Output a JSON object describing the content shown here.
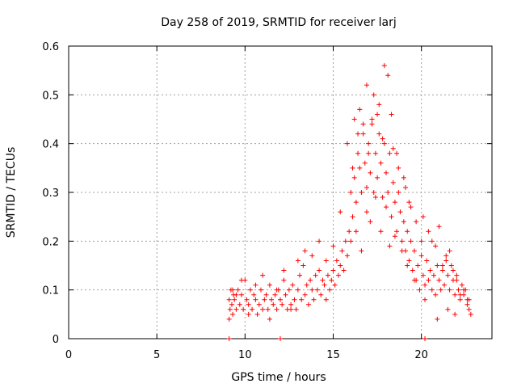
{
  "chart_data": {
    "type": "scatter",
    "title": "Day 258 of 2019, SRMTID for receiver larj",
    "xlabel": "GPS time / hours",
    "ylabel": "SRMTID / TECUs",
    "xlim": [
      0,
      24
    ],
    "ylim": [
      0,
      0.6
    ],
    "xticks": [
      0,
      5,
      10,
      15,
      20
    ],
    "yticks": [
      0,
      0.1,
      0.2,
      0.3,
      0.4,
      0.5,
      0.6
    ],
    "xtick_labels": [
      "0",
      "5",
      "10",
      "15",
      "20"
    ],
    "ytick_labels": [
      "0",
      "0.1",
      "0.2",
      "0.3",
      "0.4",
      "0.5",
      "0.6"
    ],
    "grid": true,
    "marker": "+",
    "series": [
      {
        "name": "SRMTID",
        "color": "#ff0000",
        "x": [
          9.1,
          9.15,
          9.2,
          9.25,
          9.3,
          9.35,
          9.4,
          9.5,
          9.6,
          9.7,
          9.8,
          9.9,
          10.0,
          10.1,
          10.2,
          10.3,
          10.4,
          10.5,
          10.6,
          10.7,
          10.8,
          10.9,
          11.0,
          11.1,
          11.2,
          11.3,
          11.4,
          11.5,
          11.6,
          11.7,
          11.8,
          11.9,
          12.0,
          12.1,
          12.2,
          12.3,
          12.4,
          12.5,
          12.6,
          12.7,
          12.8,
          12.9,
          13.0,
          13.1,
          13.2,
          13.3,
          13.4,
          13.5,
          13.6,
          13.7,
          13.8,
          13.9,
          14.0,
          14.1,
          14.2,
          14.3,
          14.4,
          14.5,
          14.6,
          14.7,
          14.8,
          14.9,
          15.0,
          15.1,
          15.2,
          15.3,
          15.4,
          15.5,
          15.6,
          15.7,
          15.8,
          15.9,
          16.0,
          16.1,
          16.2,
          16.3,
          16.4,
          16.5,
          16.6,
          16.7,
          16.8,
          16.9,
          17.0,
          17.1,
          17.2,
          17.3,
          17.4,
          17.5,
          17.6,
          17.7,
          17.8,
          17.9,
          18.0,
          18.1,
          18.2,
          18.3,
          18.4,
          18.5,
          18.6,
          18.7,
          18.8,
          18.9,
          19.0,
          19.1,
          19.2,
          19.3,
          19.4,
          19.5,
          19.6,
          19.7,
          19.8,
          19.9,
          20.0,
          20.1,
          20.2,
          20.3,
          20.4,
          20.5,
          20.6,
          20.7,
          20.8,
          20.9,
          21.0,
          21.1,
          21.2,
          21.3,
          21.4,
          21.5,
          21.6,
          21.7,
          21.8,
          21.9,
          22.0,
          22.1,
          22.2,
          22.3,
          22.4,
          22.5,
          22.6,
          22.7,
          22.8,
          9.1,
          9.3,
          9.5,
          9.8,
          10.2,
          10.6,
          11.0,
          11.4,
          11.8,
          12.2,
          12.6,
          13.0,
          13.4,
          13.8,
          14.2,
          14.6,
          15.0,
          15.4,
          15.8,
          16.2,
          16.5,
          16.9,
          17.2,
          17.6,
          17.9,
          18.3,
          18.6,
          19.0,
          19.3,
          19.7,
          20.0,
          20.4,
          20.8,
          21.2,
          21.6,
          22.0,
          22.4,
          22.7,
          16.1,
          16.4,
          16.7,
          17.0,
          17.3,
          17.5,
          17.8,
          18.1,
          18.4,
          18.7,
          19.1,
          19.4,
          20.1,
          20.6,
          21.0,
          21.4,
          21.8,
          22.2,
          22.6,
          16.0,
          16.3,
          16.6,
          16.9,
          17.1,
          17.4,
          17.7,
          18.0,
          18.2,
          18.5,
          18.9,
          19.2,
          19.6,
          20.2,
          20.9,
          21.5,
          21.9,
          9.1,
          12.0,
          20.2
        ],
        "y": [
          0.08,
          0.06,
          0.1,
          0.07,
          0.05,
          0.09,
          0.08,
          0.06,
          0.1,
          0.07,
          0.09,
          0.06,
          0.12,
          0.08,
          0.07,
          0.1,
          0.06,
          0.09,
          0.08,
          0.05,
          0.07,
          0.1,
          0.06,
          0.08,
          0.09,
          0.06,
          0.11,
          0.08,
          0.07,
          0.09,
          0.06,
          0.1,
          0.08,
          0.07,
          0.12,
          0.09,
          0.06,
          0.1,
          0.07,
          0.11,
          0.08,
          0.06,
          0.1,
          0.13,
          0.08,
          0.15,
          0.09,
          0.11,
          0.07,
          0.12,
          0.1,
          0.08,
          0.13,
          0.1,
          0.14,
          0.09,
          0.12,
          0.11,
          0.08,
          0.13,
          0.1,
          0.12,
          0.14,
          0.11,
          0.16,
          0.13,
          0.15,
          0.18,
          0.14,
          0.2,
          0.17,
          0.22,
          0.3,
          0.25,
          0.33,
          0.28,
          0.38,
          0.35,
          0.3,
          0.42,
          0.36,
          0.31,
          0.4,
          0.34,
          0.45,
          0.3,
          0.38,
          0.33,
          0.42,
          0.36,
          0.29,
          0.4,
          0.34,
          0.3,
          0.38,
          0.25,
          0.32,
          0.28,
          0.22,
          0.3,
          0.26,
          0.2,
          0.24,
          0.18,
          0.22,
          0.16,
          0.2,
          0.14,
          0.18,
          0.12,
          0.15,
          0.1,
          0.17,
          0.13,
          0.11,
          0.16,
          0.12,
          0.14,
          0.1,
          0.13,
          0.09,
          0.15,
          0.12,
          0.1,
          0.14,
          0.11,
          0.17,
          0.13,
          0.1,
          0.15,
          0.12,
          0.09,
          0.13,
          0.1,
          0.08,
          0.11,
          0.09,
          0.1,
          0.07,
          0.08,
          0.05,
          0.04,
          0.1,
          0.09,
          0.12,
          0.05,
          0.11,
          0.13,
          0.04,
          0.1,
          0.14,
          0.06,
          0.16,
          0.18,
          0.17,
          0.2,
          0.16,
          0.19,
          0.26,
          0.4,
          0.45,
          0.47,
          0.52,
          0.44,
          0.48,
          0.56,
          0.46,
          0.38,
          0.33,
          0.28,
          0.24,
          0.2,
          0.22,
          0.19,
          0.15,
          0.18,
          0.12,
          0.1,
          0.06,
          0.35,
          0.42,
          0.44,
          0.38,
          0.5,
          0.46,
          0.41,
          0.54,
          0.39,
          0.35,
          0.31,
          0.27,
          0.25,
          0.2,
          0.23,
          0.16,
          0.14,
          0.09,
          0.08,
          0.2,
          0.22,
          0.18,
          0.26,
          0.24,
          0.29,
          0.22,
          0.27,
          0.19,
          0.21,
          0.18,
          0.15,
          0.12,
          0.08,
          0.04,
          0.06,
          0.05,
          0.0,
          0.0,
          0.0
        ]
      }
    ]
  }
}
